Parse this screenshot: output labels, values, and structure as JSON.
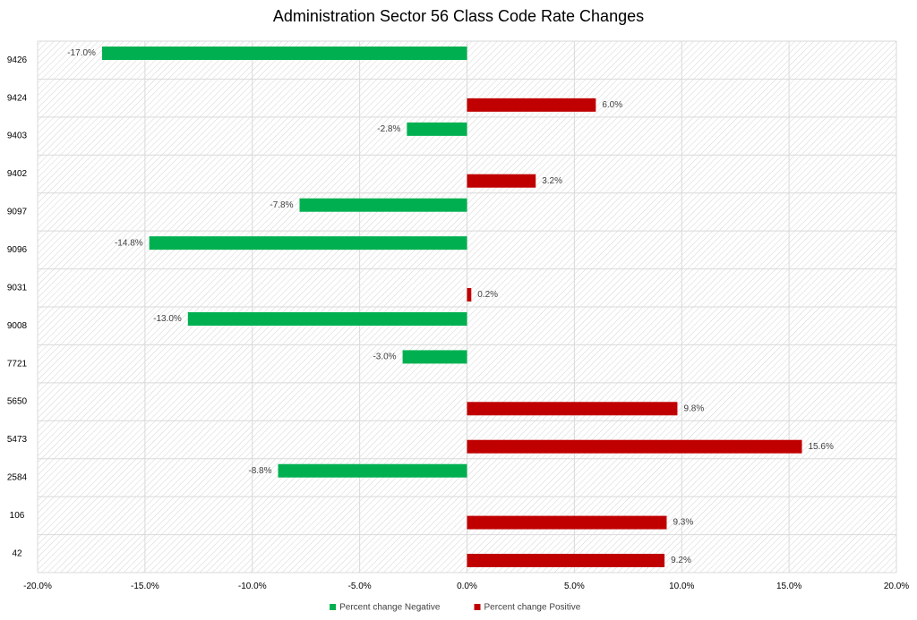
{
  "chart_data": {
    "type": "bar",
    "orientation": "horizontal",
    "title": "Administration Sector 56 Class Code Rate Changes",
    "categories": [
      "9426",
      "9424",
      "9403",
      "9402",
      "9097",
      "9096",
      "9031",
      "9008",
      "7721",
      "5650",
      "5473",
      "2584",
      "106",
      "42"
    ],
    "series": [
      {
        "name": "Percent change Negative",
        "color": "#00B050",
        "values": [
          -17.0,
          null,
          -2.8,
          null,
          -7.8,
          -14.8,
          null,
          -13.0,
          -3.0,
          null,
          null,
          -8.8,
          null,
          null
        ],
        "labels": [
          "-17.0%",
          "",
          "-2.8%",
          "",
          "-7.8%",
          "-14.8%",
          "",
          "-13.0%",
          "-3.0%",
          "",
          "",
          "-8.8%",
          "",
          ""
        ]
      },
      {
        "name": "Percent change Positive",
        "color": "#C00000",
        "values": [
          null,
          6.0,
          null,
          3.2,
          null,
          null,
          0.2,
          null,
          null,
          9.8,
          15.6,
          null,
          9.3,
          9.2
        ],
        "labels": [
          "",
          "6.0%",
          "",
          "3.2%",
          "",
          "",
          "0.2%",
          "",
          "",
          "9.8%",
          "15.6%",
          "",
          "9.3%",
          "9.2%"
        ]
      }
    ],
    "xlim": [
      -20,
      20
    ],
    "x_ticks": [
      -20,
      -15,
      -10,
      -5,
      0,
      5,
      10,
      15,
      20
    ],
    "x_tick_labels": [
      "-20.0%",
      "-15.0%",
      "-10.0%",
      "-5.0%",
      "0.0%",
      "5.0%",
      "10.0%",
      "15.0%",
      "20.0%"
    ],
    "grid": true,
    "legend": {
      "position": "bottom",
      "entries": [
        "Percent change Negative",
        "Percent change Positive"
      ]
    }
  }
}
